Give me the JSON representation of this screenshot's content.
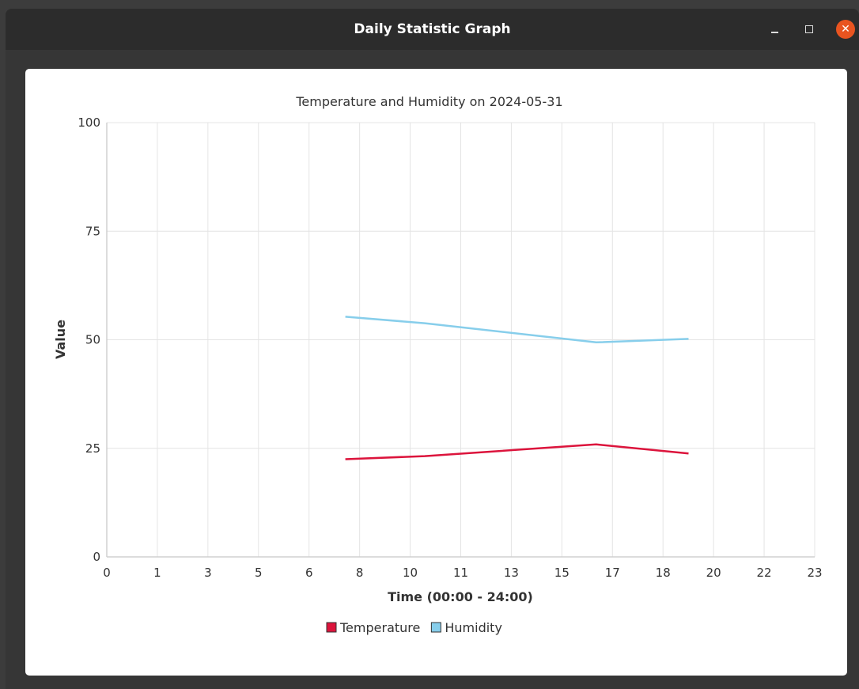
{
  "window": {
    "title": "Daily Statistic Graph"
  },
  "chart_data": {
    "type": "line",
    "title": "Temperature and Humidity on 2024-05-31",
    "xlabel": "Time (00:00 - 24:00)",
    "ylabel": "Value",
    "xlim": [
      0,
      23
    ],
    "ylim": [
      0,
      100
    ],
    "x_tick_labels": [
      "0",
      "1",
      "3",
      "5",
      "6",
      "8",
      "10",
      "11",
      "13",
      "15",
      "17",
      "18",
      "20",
      "22",
      "23"
    ],
    "y_ticks": [
      0,
      25,
      50,
      75,
      100
    ],
    "grid": true,
    "legend": "bottom-center",
    "series": [
      {
        "name": "Temperature",
        "color": "#dc143c",
        "x": [
          7.75,
          10.33,
          15.9,
          18.9
        ],
        "y": [
          22.5,
          23.2,
          25.9,
          23.8
        ]
      },
      {
        "name": "Humidity",
        "color": "#87ceeb",
        "x": [
          7.75,
          10.33,
          15.9,
          18.9
        ],
        "y": [
          55.3,
          53.8,
          49.4,
          50.2
        ]
      }
    ]
  }
}
